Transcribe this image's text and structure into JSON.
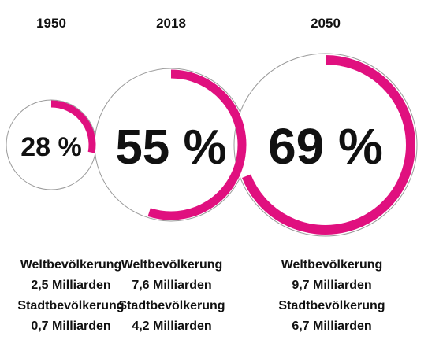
{
  "chart_data": {
    "type": "pie",
    "categories": [
      "1950",
      "2018",
      "2050"
    ],
    "values": [
      28,
      55,
      69
    ],
    "unit": "%",
    "items": [
      {
        "year": "1950",
        "value": 28,
        "label": "28 %",
        "world_label": "Weltbevölkerung",
        "world_value": "2,5 Milliarden",
        "city_label": "Stadtbevölkerung",
        "city_value": "0,7 Milliarden"
      },
      {
        "year": "2018",
        "value": 55,
        "label": "55 %",
        "world_label": "Weltbevölkerung",
        "world_value": "7,6 Milliarden",
        "city_label": "Stadtbevölkerung",
        "city_value": "4,2 Milliarden"
      },
      {
        "year": "2050",
        "value": 69,
        "label": "69 %",
        "world_label": "Weltbevölkerung",
        "world_value": "9,7 Milliarden",
        "city_label": "Stadtbevölkerung",
        "city_value": "6,7 Milliarden"
      }
    ],
    "colors": {
      "arc": "#e0107f",
      "ring": "#9a9a9a",
      "text": "#111111"
    }
  }
}
